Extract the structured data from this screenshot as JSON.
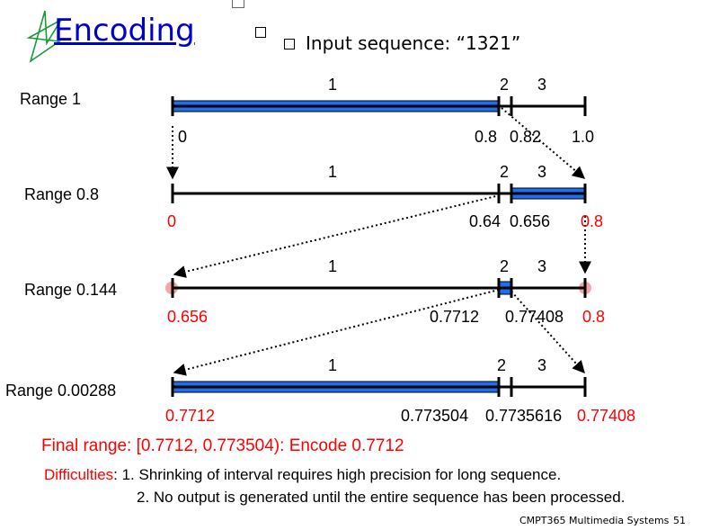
{
  "title": "Encoding",
  "subtitle": "Input sequence: “1321”",
  "ranges": [
    {
      "label": "Range 1",
      "segments": [
        "1",
        "2",
        "3"
      ],
      "ticks": [
        {
          "text": "0",
          "color": "black"
        },
        {
          "text": "0.8",
          "color": "black"
        },
        {
          "text": "0.82",
          "color": "black"
        },
        {
          "text": "1.0",
          "color": "black"
        }
      ]
    },
    {
      "label": "Range 0.8",
      "segments": [
        "1",
        "2",
        "3"
      ],
      "ticks": [
        {
          "text": "0",
          "color": "red"
        },
        {
          "text": "0.64",
          "color": "black"
        },
        {
          "text": "0.656",
          "color": "black"
        },
        {
          "text": "0.8",
          "color": "red"
        }
      ]
    },
    {
      "label": "Range 0.144",
      "segments": [
        "1",
        "2",
        "3"
      ],
      "ticks": [
        {
          "text": "0.656",
          "color": "red"
        },
        {
          "text": "0.7712",
          "color": "black"
        },
        {
          "text": "0.77408",
          "color": "black"
        },
        {
          "text": "0.8",
          "color": "red"
        }
      ]
    },
    {
      "label": "Range 0.00288",
      "segments": [
        "1",
        "2",
        "3"
      ],
      "ticks": [
        {
          "text": "0.7712",
          "color": "red"
        },
        {
          "text": "0.773504",
          "color": "black"
        },
        {
          "text": "0.7735616",
          "color": "black"
        },
        {
          "text": "0.77408",
          "color": "red"
        }
      ]
    }
  ],
  "final_range": "Final range: [0.7712, 0.773504):  Encode 0.7712",
  "difficulties": {
    "keyword": "Difficulties",
    "item1": ": 1. Shrinking of interval requires high precision for long sequence.",
    "item2": "2. No output is generated until the entire sequence has been processed."
  },
  "footer": "CMPT365 Multimedia Systems",
  "page_number": "51",
  "colors": {
    "bar_fill": "#1e6ff0",
    "accent_red": "#ff0000",
    "title_blue": "#0000cc"
  }
}
